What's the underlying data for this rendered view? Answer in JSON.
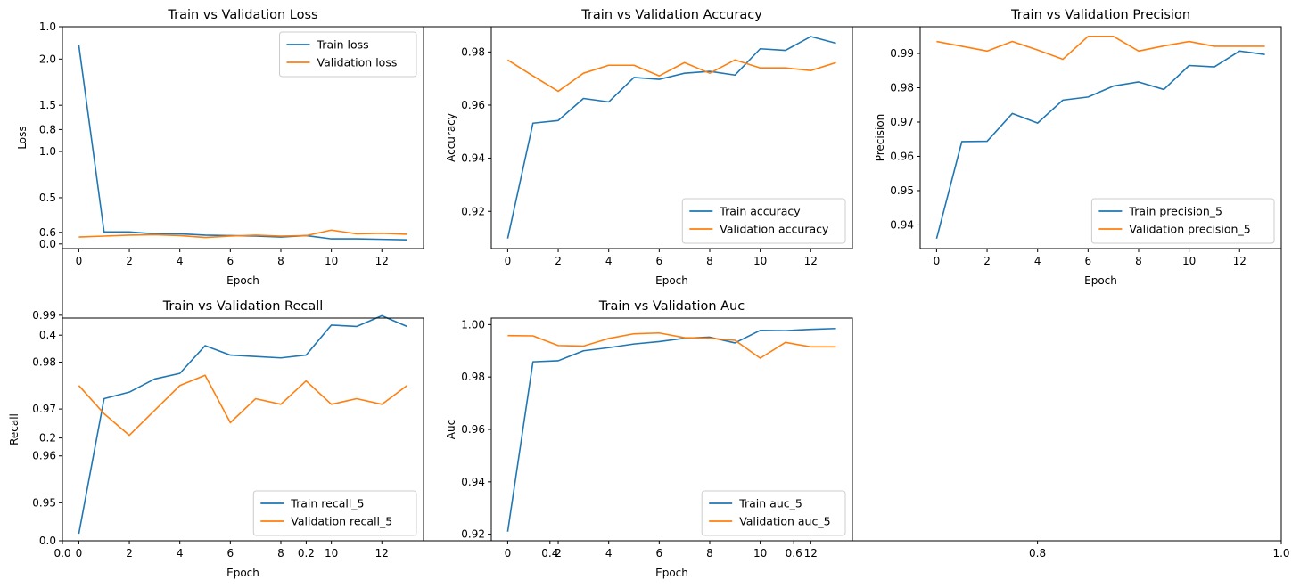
{
  "colors": {
    "train": "#1f77b4",
    "validation": "#ff7f0e"
  },
  "figure_axis": {
    "x_ticks": [
      "0.0",
      "0.2",
      "0.4",
      "0.6",
      "0.8",
      "1.0"
    ],
    "y_ticks": [
      "0.0",
      "0.2",
      "0.4",
      "0.6",
      "0.8",
      "1.0"
    ]
  },
  "chart_data": [
    {
      "type": "line",
      "title": "Train vs Validation Loss",
      "xlabel": "Epoch",
      "ylabel": "Loss",
      "x": [
        0,
        1,
        2,
        3,
        4,
        5,
        6,
        7,
        8,
        9,
        10,
        11,
        12,
        13
      ],
      "xlim": [
        -0.65,
        13.65
      ],
      "ylim": [
        -0.05,
        2.35
      ],
      "x_ticks": [
        0,
        2,
        4,
        6,
        8,
        10,
        12
      ],
      "y_ticks": [
        0.0,
        0.5,
        1.0,
        1.5,
        2.0
      ],
      "series": [
        {
          "name": "Train loss",
          "color_key": "train",
          "values": [
            2.15,
            0.13,
            0.13,
            0.11,
            0.11,
            0.095,
            0.09,
            0.085,
            0.075,
            0.09,
            0.055,
            0.055,
            0.05,
            0.045
          ]
        },
        {
          "name": "Validation loss",
          "color_key": "validation",
          "values": [
            0.075,
            0.085,
            0.095,
            0.1,
            0.09,
            0.07,
            0.085,
            0.095,
            0.085,
            0.09,
            0.15,
            0.11,
            0.115,
            0.105
          ]
        }
      ],
      "legend": "top-right"
    },
    {
      "type": "line",
      "title": "Train vs Validation Accuracy",
      "xlabel": "Epoch",
      "ylabel": "Accuracy",
      "x": [
        0,
        1,
        2,
        3,
        4,
        5,
        6,
        7,
        8,
        9,
        10,
        11,
        12,
        13
      ],
      "xlim": [
        -0.65,
        13.65
      ],
      "ylim": [
        0.906,
        0.9895
      ],
      "x_ticks": [
        0,
        2,
        4,
        6,
        8,
        10,
        12
      ],
      "y_ticks": [
        0.92,
        0.94,
        0.96,
        0.98
      ],
      "series": [
        {
          "name": "Train accuracy",
          "color_key": "train",
          "values": [
            0.9098,
            0.9532,
            0.9542,
            0.9625,
            0.9612,
            0.9704,
            0.9697,
            0.972,
            0.9727,
            0.9713,
            0.9812,
            0.9806,
            0.9858,
            0.9833
          ]
        },
        {
          "name": "Validation accuracy",
          "color_key": "validation",
          "values": [
            0.977,
            0.971,
            0.9652,
            0.972,
            0.975,
            0.975,
            0.971,
            0.976,
            0.972,
            0.977,
            0.974,
            0.974,
            0.973,
            0.976
          ]
        }
      ],
      "legend": "bottom-right"
    },
    {
      "type": "line",
      "title": "Train vs Validation Precision",
      "xlabel": "Epoch",
      "ylabel": "Precision",
      "x": [
        0,
        1,
        2,
        3,
        4,
        5,
        6,
        7,
        8,
        9,
        10,
        11,
        12,
        13
      ],
      "xlim": [
        -0.65,
        13.65
      ],
      "ylim": [
        0.9331,
        0.9978
      ],
      "x_ticks": [
        0,
        2,
        4,
        6,
        8,
        10,
        12
      ],
      "y_ticks": [
        0.94,
        0.95,
        0.96,
        0.97,
        0.98,
        0.99
      ],
      "series": [
        {
          "name": "Train precision_5",
          "color_key": "train",
          "values": [
            0.936,
            0.9643,
            0.9644,
            0.9725,
            0.9697,
            0.9764,
            0.9773,
            0.9805,
            0.9817,
            0.9795,
            0.9865,
            0.9861,
            0.9907,
            0.9897
          ]
        },
        {
          "name": "Validation precision_5",
          "color_key": "validation",
          "values": [
            0.9935,
            0.9921,
            0.9907,
            0.9935,
            0.991,
            0.9883,
            0.995,
            0.995,
            0.9907,
            0.9922,
            0.9935,
            0.9921,
            0.9921,
            0.9921
          ]
        }
      ],
      "legend": "bottom-right"
    },
    {
      "type": "line",
      "title": "Train vs Validation Recall",
      "xlabel": "Epoch",
      "ylabel": "Recall",
      "x": [
        0,
        1,
        2,
        3,
        4,
        5,
        6,
        7,
        8,
        9,
        10,
        11,
        12,
        13
      ],
      "xlim": [
        -0.65,
        13.65
      ],
      "ylim": [
        0.9419,
        0.9894
      ],
      "x_ticks": [
        0,
        2,
        4,
        6,
        8,
        10,
        12
      ],
      "y_ticks": [
        0.95,
        0.96,
        0.97,
        0.98,
        0.99
      ],
      "series": [
        {
          "name": "Train recall_5",
          "color_key": "train",
          "values": [
            0.9434,
            0.9722,
            0.9736,
            0.9764,
            0.9776,
            0.9835,
            0.9815,
            0.9812,
            0.9809,
            0.9815,
            0.9879,
            0.9876,
            0.9899,
            0.9876
          ]
        },
        {
          "name": "Validation recall_5",
          "color_key": "validation",
          "values": [
            0.975,
            0.969,
            0.9644,
            0.9697,
            0.975,
            0.9772,
            0.9671,
            0.9722,
            0.971,
            0.976,
            0.971,
            0.9722,
            0.971,
            0.975
          ]
        }
      ],
      "legend": "bottom-right"
    },
    {
      "type": "line",
      "title": "Train vs Validation Auc",
      "xlabel": "Epoch",
      "ylabel": "Auc",
      "x": [
        0,
        1,
        2,
        3,
        4,
        5,
        6,
        7,
        8,
        9,
        10,
        11,
        12,
        13
      ],
      "xlim": [
        -0.65,
        13.65
      ],
      "ylim": [
        0.9175,
        1.0025
      ],
      "x_ticks": [
        0,
        2,
        4,
        6,
        8,
        10,
        12
      ],
      "y_ticks": [
        0.92,
        0.94,
        0.96,
        0.98,
        1.0
      ],
      "series": [
        {
          "name": "Train auc_5",
          "color_key": "train",
          "values": [
            0.921,
            0.9858,
            0.9862,
            0.99,
            0.9912,
            0.9926,
            0.9935,
            0.9948,
            0.9952,
            0.993,
            0.9978,
            0.9977,
            0.9982,
            0.9985
          ]
        },
        {
          "name": "Validation auc_5",
          "color_key": "validation",
          "values": [
            0.9958,
            0.9957,
            0.992,
            0.9918,
            0.9947,
            0.9965,
            0.9968,
            0.995,
            0.9948,
            0.994,
            0.9872,
            0.9932,
            0.9915,
            0.9915
          ]
        }
      ],
      "legend": "bottom-right"
    }
  ]
}
